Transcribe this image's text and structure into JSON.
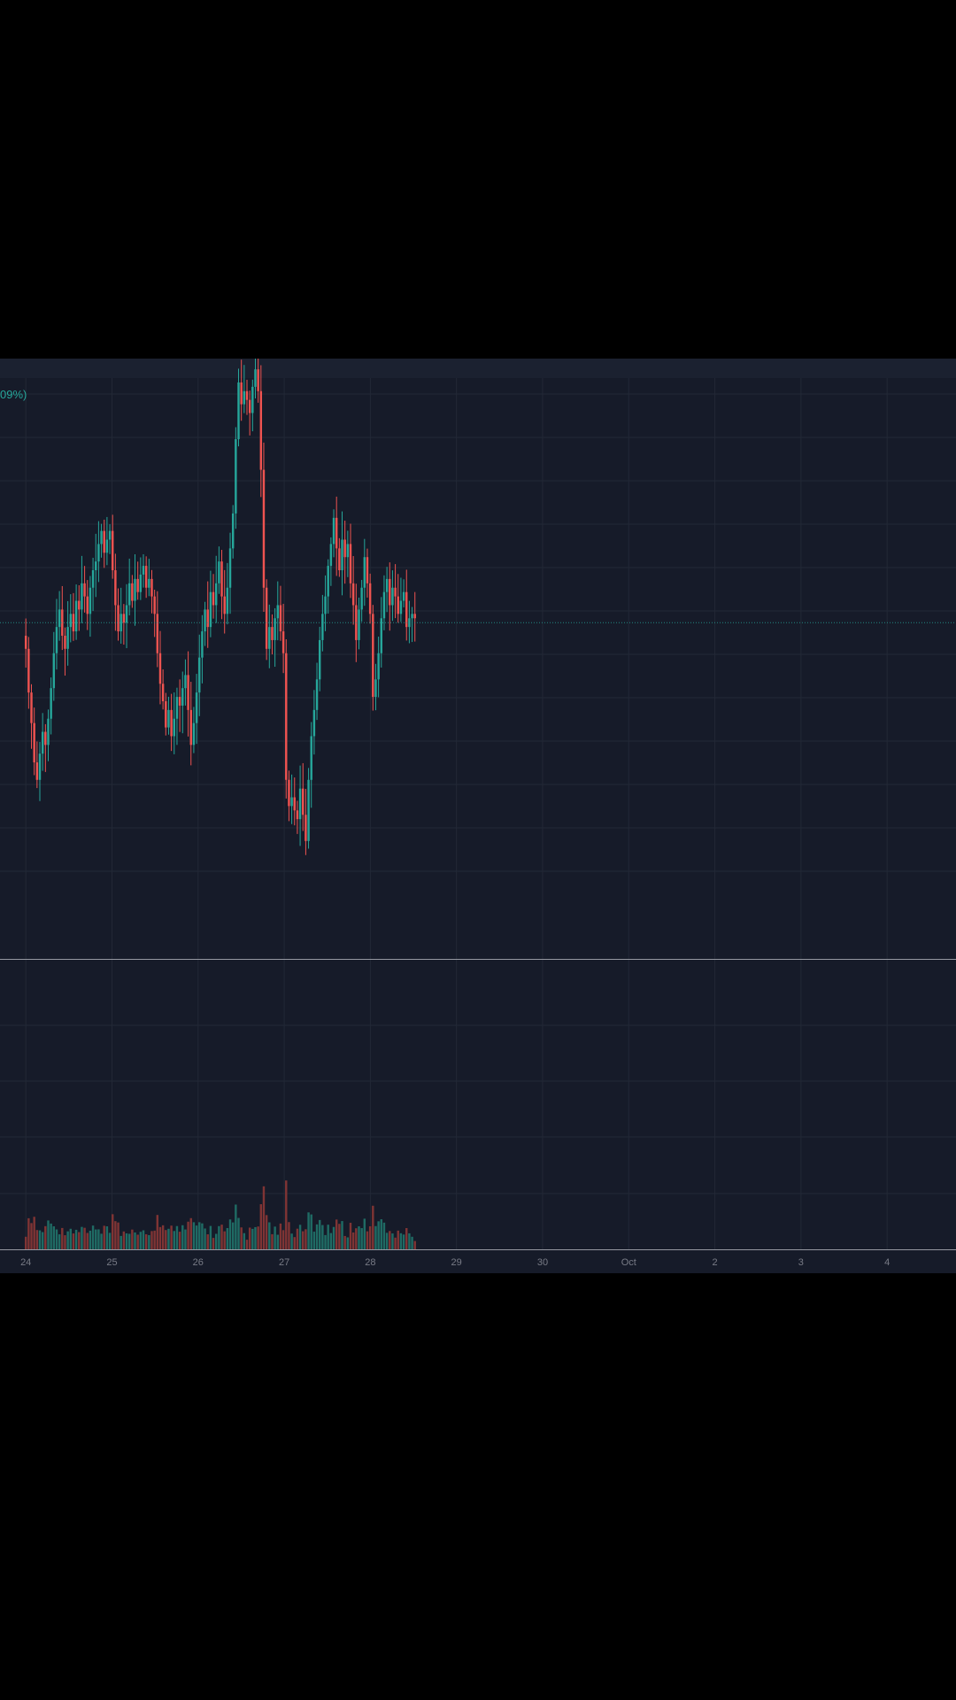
{
  "colors": {
    "background": "#161b29",
    "grid": "#222836",
    "up": "#26a69a",
    "down": "#ef5350",
    "up_volume": "#1f6b64",
    "down_volume": "#7f3434",
    "axis_line": "#9598a1",
    "tick_text": "#787b86",
    "last_price_line": "#26a69a"
  },
  "header": {
    "change_text": "09%)"
  },
  "chart_data": {
    "type": "candlestick",
    "x_axis": {
      "ticks": [
        "24",
        "25",
        "26",
        "27",
        "28",
        "29",
        "30",
        "Oct",
        "2",
        "3",
        "4"
      ],
      "range_days": [
        23.7,
        34.8
      ]
    },
    "y_axis": {
      "range": [
        -6.7,
        6.6
      ],
      "labels_visible": false
    },
    "last_price": 1.0,
    "grid": true,
    "candles_per_day": 24,
    "candles_close_sequence": [
      0.4,
      -0.6,
      -1.3,
      -2.2,
      -2.6,
      -2.0,
      -1.5,
      -1.8,
      -1.2,
      -0.5,
      0.3,
      0.9,
      1.3,
      0.7,
      0.4,
      0.9,
      1.2,
      0.8,
      1.5,
      1.3,
      1.9,
      1.6,
      1.2,
      1.8,
      2.2,
      2.4,
      2.8,
      3.1,
      2.6,
      2.9,
      3.1,
      2.2,
      1.4,
      0.8,
      1.2,
      1.0,
      1.4,
      1.9,
      1.5,
      2.0,
      1.7,
      2.1,
      2.3,
      1.8,
      2.0,
      1.6,
      1.2,
      0.3,
      -0.4,
      -0.8,
      -1.4,
      -1.0,
      -1.6,
      -1.2,
      -0.7,
      -0.9,
      -0.5,
      -0.2,
      -1.0,
      -1.8,
      -1.3,
      -0.6,
      0.2,
      0.8,
      1.3,
      0.9,
      1.7,
      1.4,
      1.9,
      2.4,
      1.6,
      1.2,
      1.8,
      2.7,
      3.5,
      5.2,
      6.5,
      6.0,
      6.3,
      6.1,
      5.8,
      6.4,
      6.8,
      6.3,
      4.5,
      1.8,
      0.4,
      0.9,
      0.6,
      1.1,
      1.4,
      0.8,
      0.3,
      -2.6,
      -3.2,
      -3.0,
      -3.3,
      -3.5,
      -2.8,
      -3.4,
      -4.0,
      -2.6,
      -1.6,
      -1.0,
      -0.3,
      0.6,
      1.2,
      1.6,
      2.3,
      2.8,
      3.4,
      2.7,
      2.2,
      2.9,
      2.5,
      2.8,
      1.9,
      1.4,
      0.6,
      1.3,
      1.8,
      2.5,
      1.9,
      1.2,
      -0.7,
      -0.3,
      0.3,
      1.1,
      1.7,
      2.0,
      1.4,
      1.8,
      1.6,
      1.2,
      1.5,
      1.7,
      0.9,
      1.1,
      1.2,
      1.1
    ],
    "series": []
  }
}
